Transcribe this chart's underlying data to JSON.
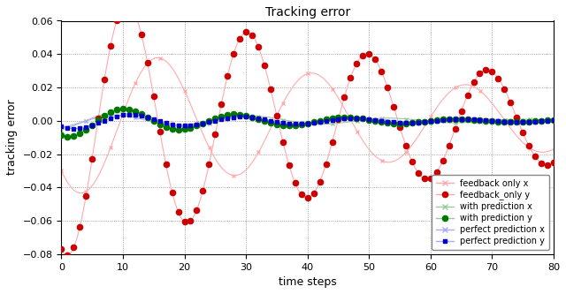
{
  "title": "Tracking error",
  "xlabel": "time steps",
  "ylabel": "tracking error",
  "xlim": [
    0,
    80
  ],
  "ylim": [
    -0.08,
    0.06
  ],
  "yticks": [
    -0.08,
    -0.06,
    -0.04,
    -0.02,
    0.0,
    0.02,
    0.04,
    0.06
  ],
  "xticks": [
    0,
    10,
    20,
    30,
    40,
    50,
    60,
    70,
    80
  ],
  "legend_labels": [
    "feedback only x",
    "feedback_only y",
    "with prediction x",
    "with prediction y",
    "perfect prediction x",
    "perfect prediction y"
  ],
  "colors": {
    "feedback_x": "#ffaaaa",
    "feedback_y_line": "#ffaaaa",
    "feedback_y_dot": "#cc0000",
    "pred_x": "#99cc99",
    "pred_y_line": "#99cc99",
    "pred_y_dot": "#007700",
    "perfect_x": "#aaaaff",
    "perfect_y_line": "#aaaaff",
    "perfect_y_dot": "#0000cc"
  }
}
